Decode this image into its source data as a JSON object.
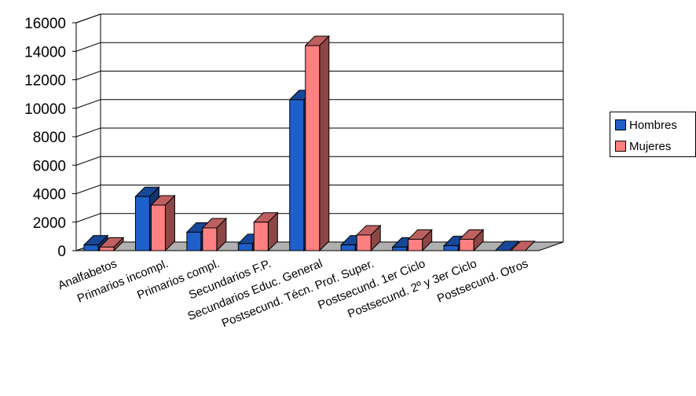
{
  "chart_data": {
    "type": "bar",
    "categories": [
      "Analfabetos",
      "Primarios incompl.",
      "Primarios compl.",
      "Secundarios F.P.",
      "Secundarios Educ. General",
      "Postsecund. Técn. Prof. Super.",
      "Postsecund. 1er Ciclo",
      "Postsecund. 2º y 3er Ciclo",
      "Postsecund. Otros"
    ],
    "series": [
      {
        "name": "Hombres",
        "color": "#1f5fc9",
        "values": [
          400,
          3800,
          1300,
          500,
          10600,
          400,
          250,
          350,
          0
        ]
      },
      {
        "name": "Mujeres",
        "color": "#ff8080",
        "values": [
          250,
          3200,
          1600,
          2000,
          14400,
          1100,
          800,
          800,
          0
        ]
      }
    ],
    "yticks": [
      "0",
      "2000",
      "4000",
      "6000",
      "8000",
      "10000",
      "12000",
      "14000",
      "16000"
    ],
    "ylim": [
      0,
      16000
    ],
    "grid": true,
    "legend_position": "right"
  }
}
